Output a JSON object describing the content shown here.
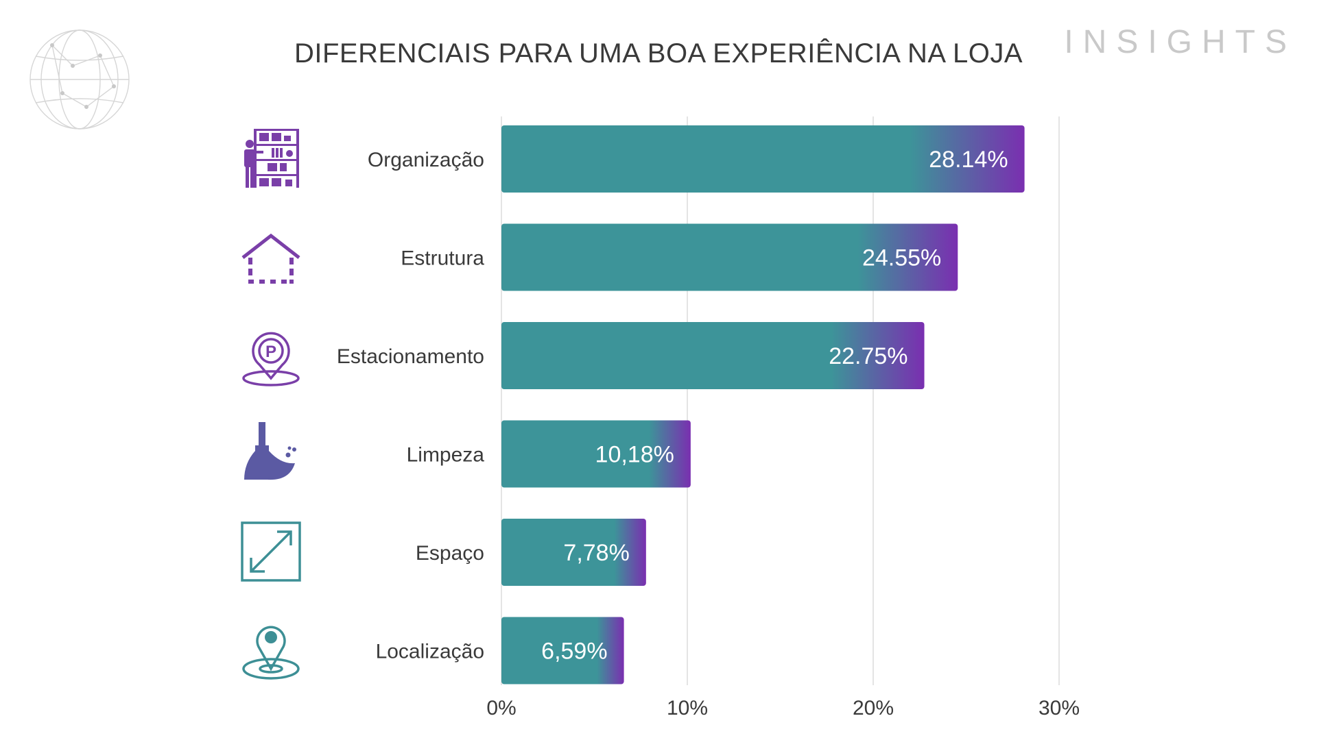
{
  "header": {
    "brand": "INSIGHTS"
  },
  "colors": {
    "bar_start": "#3d9499",
    "bar_end": "#7a2fb0",
    "icon_purple": "#7a3fa8",
    "icon_indigo": "#5b5aa3",
    "icon_teal": "#3d8f95",
    "grid": "#e4e4e4",
    "text": "#3a3a3a"
  },
  "categories": [
    {
      "name": "Organização",
      "icon": "store-shelves-icon"
    },
    {
      "name": "Estrutura",
      "icon": "house-structure-icon"
    },
    {
      "name": "Estacionamento",
      "icon": "parking-pin-icon"
    },
    {
      "name": "Limpeza",
      "icon": "broom-icon"
    },
    {
      "name": "Espaço",
      "icon": "resize-arrow-icon"
    },
    {
      "name": "Localização",
      "icon": "location-pin-icon"
    }
  ],
  "chart_data": {
    "type": "bar",
    "orientation": "horizontal",
    "title": "DIFERENCIAIS PARA UMA BOA EXPERIÊNCIA NA LOJA",
    "categories": [
      "Organização",
      "Estrutura",
      "Estacionamento",
      "Limpeza",
      "Espaço",
      "Localização"
    ],
    "values": [
      28.14,
      24.55,
      22.75,
      10.18,
      7.78,
      6.59
    ],
    "data_labels": [
      "28.14%",
      "24.55%",
      "22.75%",
      "10,18%",
      "7,78%",
      "6,59%"
    ],
    "xlim": [
      0,
      30
    ],
    "xticks": [
      0,
      10,
      20,
      30
    ],
    "xtick_labels": [
      "0%",
      "10%",
      "20%",
      "30%"
    ],
    "grid": true,
    "legend": "none"
  }
}
